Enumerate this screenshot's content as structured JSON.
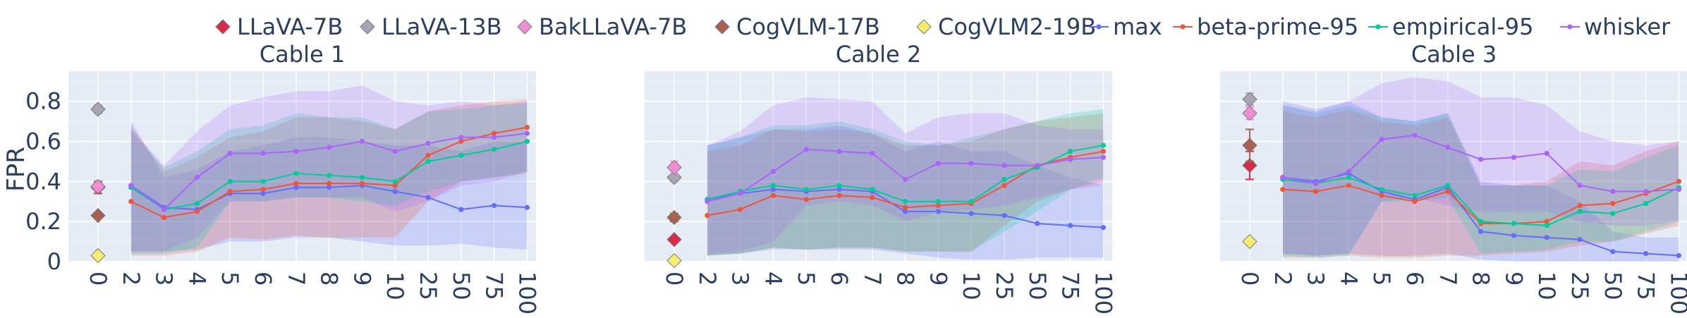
{
  "chart_data": {
    "type": "line",
    "ylabel": "FPR",
    "ylim": [
      0,
      0.95
    ],
    "y_ticks": [
      0,
      0.2,
      0.4,
      0.6,
      0.8
    ],
    "y_tick_labels": [
      "0",
      "0.2",
      "0.4",
      "0.6",
      "0.8"
    ],
    "categories": [
      "0",
      "2",
      "3",
      "4",
      "5",
      "6",
      "7",
      "8",
      "9",
      "10",
      "25",
      "50",
      "75",
      "100"
    ],
    "grid": true,
    "legend_position": "top",
    "legend": [
      {
        "name": "LLaVA-7B",
        "kind": "diamond",
        "color": "#d62c4a"
      },
      {
        "name": "LLaVA-13B",
        "kind": "diamond",
        "color": "#a9a3b6"
      },
      {
        "name": "BakLLaVA-7B",
        "kind": "diamond",
        "color": "#ef8ed3"
      },
      {
        "name": "CogVLM-17B",
        "kind": "diamond",
        "color": "#a86050"
      },
      {
        "name": "CogVLM2-19B",
        "kind": "diamond",
        "color": "#f5ec70"
      },
      {
        "name": "max",
        "kind": "line",
        "color": "#636efa"
      },
      {
        "name": "beta-prime-95",
        "kind": "line",
        "color": "#ef553b"
      },
      {
        "name": "empirical-95",
        "kind": "line",
        "color": "#00cc96"
      },
      {
        "name": "whisker",
        "kind": "line",
        "color": "#ab63fa"
      }
    ],
    "panels": [
      {
        "title": "Cable 1",
        "points": [
          {
            "model": "LLaVA-7B",
            "x": "0",
            "y": 0.37,
            "err": 0.03
          },
          {
            "model": "LLaVA-13B",
            "x": "0",
            "y": 0.76,
            "err": 0.02
          },
          {
            "model": "BakLLaVA-7B",
            "x": "0",
            "y": 0.375,
            "err": 0.02
          },
          {
            "model": "CogVLM-17B",
            "x": "0",
            "y": 0.23,
            "err": 0.01
          },
          {
            "model": "CogVLM2-19B",
            "x": "0",
            "y": 0.03,
            "err": 0
          }
        ],
        "series": [
          {
            "name": "max",
            "values": [
              0.38,
              0.27,
              0.26,
              0.34,
              0.34,
              0.37,
              0.37,
              0.38,
              0.35,
              0.32,
              0.26,
              0.28,
              0.27
            ],
            "upper": [
              0.7,
              0.42,
              0.46,
              0.55,
              0.58,
              0.62,
              0.62,
              0.6,
              0.58,
              0.58,
              0.55,
              0.6,
              0.6
            ],
            "lower": [
              0.05,
              0.05,
              0.06,
              0.1,
              0.1,
              0.12,
              0.12,
              0.1,
              0.08,
              0.08,
              0.09,
              0.07,
              0.06
            ]
          },
          {
            "name": "beta-prime-95",
            "values": [
              0.3,
              0.22,
              0.25,
              0.35,
              0.36,
              0.39,
              0.39,
              0.39,
              0.38,
              0.53,
              0.6,
              0.64,
              0.67
            ],
            "upper": [
              0.68,
              0.45,
              0.52,
              0.62,
              0.65,
              0.72,
              0.72,
              0.7,
              0.66,
              0.75,
              0.78,
              0.8,
              0.81
            ],
            "lower": [
              0.03,
              0.03,
              0.05,
              0.12,
              0.11,
              0.13,
              0.12,
              0.12,
              0.12,
              0.3,
              0.4,
              0.42,
              0.44
            ]
          },
          {
            "name": "empirical-95",
            "values": [
              0.37,
              0.26,
              0.29,
              0.4,
              0.4,
              0.44,
              0.43,
              0.42,
              0.4,
              0.5,
              0.53,
              0.56,
              0.6
            ],
            "upper": [
              0.65,
              0.47,
              0.55,
              0.66,
              0.68,
              0.74,
              0.72,
              0.72,
              0.66,
              0.75,
              0.76,
              0.78,
              0.79
            ],
            "lower": [
              0.04,
              0.04,
              0.07,
              0.3,
              0.3,
              0.32,
              0.32,
              0.3,
              0.28,
              0.35,
              0.4,
              0.42,
              0.45
            ]
          },
          {
            "name": "whisker",
            "values": [
              0.38,
              0.26,
              0.42,
              0.54,
              0.54,
              0.55,
              0.57,
              0.6,
              0.55,
              0.59,
              0.62,
              0.62,
              0.64
            ],
            "upper": [
              0.66,
              0.48,
              0.65,
              0.78,
              0.82,
              0.85,
              0.85,
              0.88,
              0.8,
              0.78,
              0.8,
              0.78,
              0.8
            ],
            "lower": [
              0.05,
              0.05,
              0.12,
              0.3,
              0.3,
              0.32,
              0.32,
              0.32,
              0.25,
              0.3,
              0.38,
              0.4,
              0.45
            ]
          }
        ]
      },
      {
        "title": "Cable 2",
        "points": [
          {
            "model": "LLaVA-7B",
            "x": "0",
            "y": 0.11,
            "err": 0.01
          },
          {
            "model": "LLaVA-13B",
            "x": "0",
            "y": 0.42,
            "err": 0.02
          },
          {
            "model": "BakLLaVA-7B",
            "x": "0",
            "y": 0.47,
            "err": 0.03
          },
          {
            "model": "CogVLM-17B",
            "x": "0",
            "y": 0.22,
            "err": 0.02
          },
          {
            "model": "CogVLM2-19B",
            "x": "0",
            "y": 0.005,
            "err": 0
          }
        ],
        "series": [
          {
            "name": "max",
            "values": [
              0.31,
              0.34,
              0.36,
              0.35,
              0.36,
              0.35,
              0.25,
              0.25,
              0.24,
              0.23,
              0.19,
              0.18,
              0.17
            ],
            "upper": [
              0.58,
              0.62,
              0.66,
              0.66,
              0.68,
              0.64,
              0.55,
              0.6,
              0.55,
              0.55,
              0.48,
              0.42,
              0.38
            ],
            "lower": [
              0.03,
              0.04,
              0.06,
              0.06,
              0.06,
              0.06,
              0.04,
              0.02,
              0.01,
              0.01,
              0.02,
              0.02,
              0.02
            ]
          },
          {
            "name": "beta-prime-95",
            "values": [
              0.23,
              0.26,
              0.33,
              0.31,
              0.33,
              0.32,
              0.27,
              0.28,
              0.29,
              0.38,
              0.48,
              0.52,
              0.55
            ],
            "upper": [
              0.55,
              0.58,
              0.66,
              0.65,
              0.66,
              0.64,
              0.58,
              0.58,
              0.6,
              0.66,
              0.7,
              0.72,
              0.74
            ],
            "lower": [
              0.03,
              0.04,
              0.07,
              0.06,
              0.07,
              0.07,
              0.05,
              0.05,
              0.05,
              0.18,
              0.3,
              0.36,
              0.4
            ]
          },
          {
            "name": "empirical-95",
            "values": [
              0.31,
              0.35,
              0.38,
              0.36,
              0.38,
              0.36,
              0.3,
              0.3,
              0.3,
              0.41,
              0.47,
              0.55,
              0.58
            ],
            "upper": [
              0.58,
              0.62,
              0.68,
              0.68,
              0.7,
              0.66,
              0.6,
              0.58,
              0.62,
              0.66,
              0.7,
              0.74,
              0.76
            ],
            "lower": [
              0.03,
              0.04,
              0.07,
              0.06,
              0.07,
              0.07,
              0.05,
              0.05,
              0.05,
              0.15,
              0.25,
              0.36,
              0.42
            ]
          },
          {
            "name": "whisker",
            "values": [
              0.3,
              0.34,
              0.45,
              0.56,
              0.55,
              0.54,
              0.41,
              0.49,
              0.49,
              0.48,
              0.48,
              0.51,
              0.52
            ],
            "upper": [
              0.58,
              0.65,
              0.78,
              0.82,
              0.81,
              0.8,
              0.64,
              0.72,
              0.74,
              0.74,
              0.68,
              0.66,
              0.66
            ],
            "lower": [
              0.04,
              0.05,
              0.1,
              0.28,
              0.3,
              0.28,
              0.2,
              0.25,
              0.26,
              0.28,
              0.32,
              0.36,
              0.38
            ]
          }
        ]
      },
      {
        "title": "Cable 3",
        "points": [
          {
            "model": "LLaVA-7B",
            "x": "0",
            "y": 0.48,
            "err": 0.07
          },
          {
            "model": "LLaVA-13B",
            "x": "0",
            "y": 0.81,
            "err": 0.03
          },
          {
            "model": "BakLLaVA-7B",
            "x": "0",
            "y": 0.74,
            "err": 0.03
          },
          {
            "model": "CogVLM-17B",
            "x": "0",
            "y": 0.58,
            "err": 0.08
          },
          {
            "model": "CogVLM2-19B",
            "x": "0",
            "y": 0.1,
            "err": 0
          }
        ],
        "series": [
          {
            "name": "max",
            "values": [
              0.42,
              0.4,
              0.44,
              0.35,
              0.31,
              0.37,
              0.15,
              0.13,
              0.12,
              0.11,
              0.05,
              0.04,
              0.03
            ],
            "upper": [
              0.8,
              0.76,
              0.8,
              0.72,
              0.7,
              0.74,
              0.4,
              0.38,
              0.38,
              0.3,
              0.15,
              0.12,
              0.12
            ],
            "lower": [
              0.04,
              0.03,
              0.04,
              0.03,
              0.03,
              0.04,
              0.01,
              0.0,
              0.0,
              0.0,
              0.0,
              0.0,
              0.0
            ]
          },
          {
            "name": "beta-prime-95",
            "values": [
              0.36,
              0.35,
              0.38,
              0.33,
              0.3,
              0.35,
              0.19,
              0.19,
              0.2,
              0.28,
              0.29,
              0.34,
              0.4
            ],
            "upper": [
              0.75,
              0.72,
              0.76,
              0.7,
              0.68,
              0.72,
              0.38,
              0.38,
              0.4,
              0.5,
              0.48,
              0.55,
              0.6
            ],
            "lower": [
              0.02,
              0.02,
              0.03,
              0.02,
              0.02,
              0.03,
              0.03,
              0.04,
              0.05,
              0.08,
              0.1,
              0.14,
              0.18
            ]
          },
          {
            "name": "empirical-95",
            "values": [
              0.41,
              0.39,
              0.42,
              0.36,
              0.33,
              0.38,
              0.2,
              0.19,
              0.18,
              0.25,
              0.24,
              0.29,
              0.37
            ],
            "upper": [
              0.78,
              0.74,
              0.78,
              0.72,
              0.7,
              0.74,
              0.38,
              0.38,
              0.38,
              0.46,
              0.45,
              0.52,
              0.58
            ],
            "lower": [
              0.03,
              0.02,
              0.03,
              0.3,
              0.3,
              0.32,
              0.04,
              0.05,
              0.06,
              0.1,
              0.1,
              0.15,
              0.2
            ]
          },
          {
            "name": "whisker",
            "values": [
              0.42,
              0.39,
              0.45,
              0.61,
              0.63,
              0.57,
              0.51,
              0.52,
              0.54,
              0.38,
              0.35,
              0.35,
              0.36
            ],
            "upper": [
              0.78,
              0.75,
              0.8,
              0.89,
              0.92,
              0.9,
              0.82,
              0.82,
              0.78,
              0.65,
              0.6,
              0.58,
              0.6
            ],
            "lower": [
              0.04,
              0.03,
              0.04,
              0.3,
              0.32,
              0.28,
              0.25,
              0.25,
              0.25,
              0.2,
              0.18,
              0.18,
              0.2
            ]
          }
        ]
      }
    ]
  }
}
